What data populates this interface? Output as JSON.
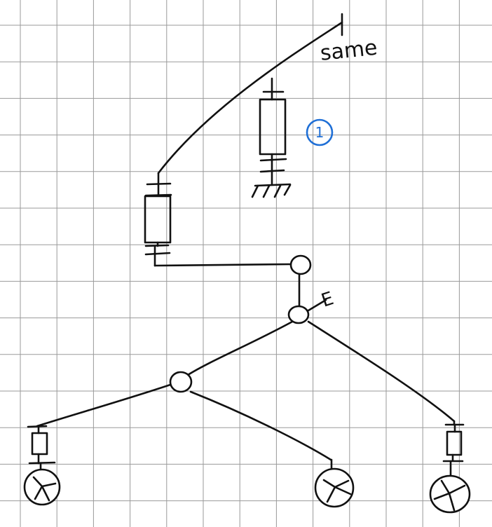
{
  "sheet": {
    "paper": "graph-paper",
    "grid_color": "#9a9a9a",
    "ink_color": "#111111",
    "accent_color": "#1f6fd6"
  },
  "annotations": {
    "top_label": "same",
    "blue_marker": "1",
    "junction_mark": "E"
  },
  "icons": [
    "ground-icon",
    "wheel-icon"
  ]
}
